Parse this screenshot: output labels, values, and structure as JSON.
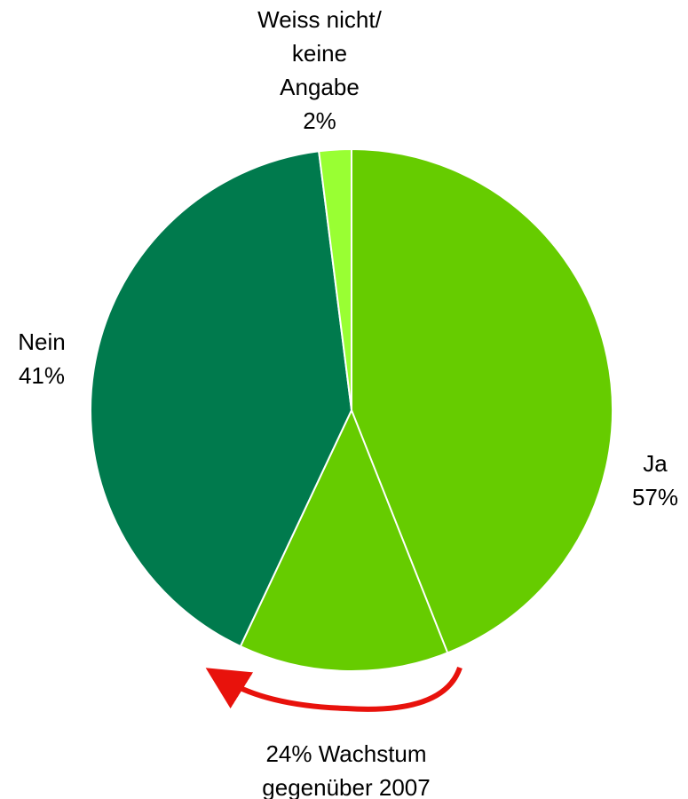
{
  "chart_data": {
    "type": "pie",
    "labels": [
      "Ja",
      "Nein",
      "Weiss nicht/\nkeine\nAngabe"
    ],
    "values": [
      57,
      41,
      2
    ],
    "value_labels": [
      "57%",
      "41%",
      "2%"
    ],
    "colors": [
      "#66cc00",
      "#007a4d",
      "#99ff33"
    ],
    "ja_parts": [
      44,
      13
    ],
    "annotation": "24% Wachstum\ngegenüber 2007"
  }
}
